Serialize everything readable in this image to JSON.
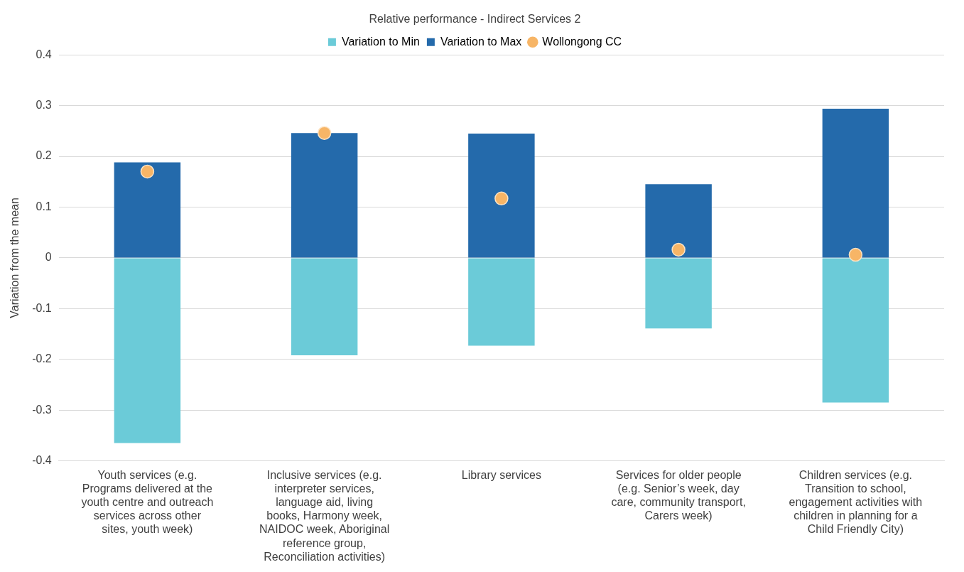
{
  "chart_data": {
    "type": "bar",
    "title": "Relative performance - Indirect Services 2",
    "ylabel": "Variation from the mean",
    "categories": [
      "Youth services (e.g. Programs delivered at the youth centre and outreach services across other sites, youth week)",
      "Inclusive services (e.g. interpreter services, language aid, living books, Harmony week, NAIDOC week, Aboriginal reference group, Reconciliation activities)",
      "Library services",
      "Services for older people (e.g. Senior’s week, day care, community transport, Carers week)",
      "Children services (e.g. Transition to school, engagement activities with children in planning for a Child Friendly City)"
    ],
    "series": [
      {
        "name": "Variation to Min",
        "color": "#6bcbd8",
        "values": [
          -0.365,
          -0.192,
          -0.173,
          -0.139,
          -0.285
        ]
      },
      {
        "name": "Variation to Max",
        "color": "#246aab",
        "values": [
          0.188,
          0.246,
          0.245,
          0.145,
          0.294
        ]
      },
      {
        "name": "Wollongong CC",
        "type": "scatter",
        "color": "#f7b566",
        "marker": "circle",
        "x": [
          "Youth services (e.g. Programs delivered at the youth centre and outreach services across other sites, youth week)",
          "Inclusive services (e.g. interpreter services, language aid, living books, Harmony week, NAIDOC week, Aboriginal reference group, Reconciliation activities)",
          "Library services",
          "Services for older people (e.g. Senior’s week, day care, community transport, Carers week)",
          "Children services (e.g. Transition to school, engagement activities with children in planning for a Child Friendly City)"
        ],
        "values": [
          0.17,
          0.246,
          0.117,
          0.016,
          0.006
        ]
      }
    ],
    "stacked": true,
    "ylim": [
      -0.4,
      0.4
    ],
    "yticks": [
      -0.4,
      -0.3,
      -0.2,
      -0.1,
      0,
      0.1,
      0.2,
      0.3,
      0.4
    ],
    "grid": "y",
    "legend": "top"
  }
}
